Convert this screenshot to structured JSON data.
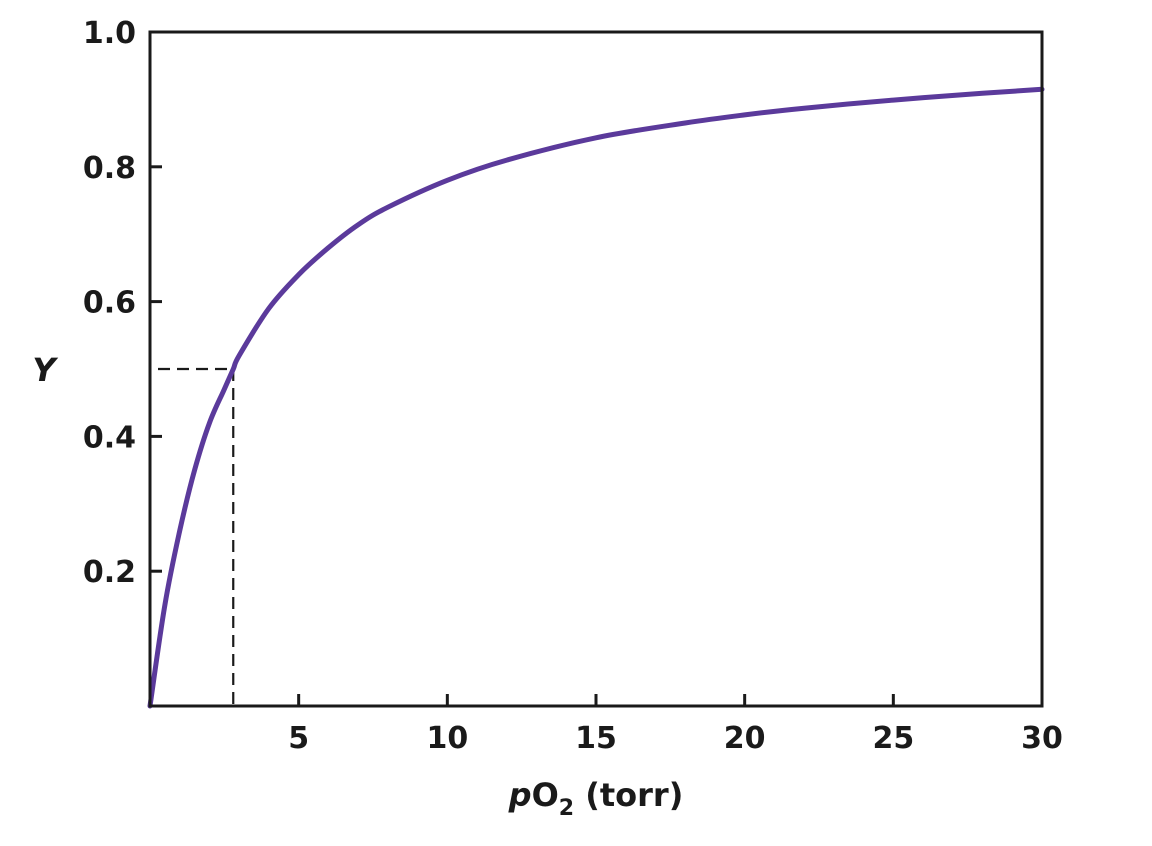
{
  "chart_data": {
    "type": "line",
    "title": "",
    "xlabel": {
      "italic_prefix": "p",
      "main": "O",
      "subscript": "2",
      "suffix": " (torr)"
    },
    "ylabel": "Y",
    "xlim": [
      0,
      30
    ],
    "ylim": [
      0,
      1.0
    ],
    "x_ticks": [
      5,
      10,
      15,
      20,
      25,
      30
    ],
    "x_tick_labels": [
      "5",
      "10",
      "15",
      "20",
      "25",
      "30"
    ],
    "y_ticks": [
      0.2,
      0.4,
      0.6,
      0.8,
      1.0
    ],
    "y_tick_labels": [
      "0.2",
      "0.4",
      "0.6",
      "0.8",
      "1.0"
    ],
    "grid": false,
    "series": [
      {
        "color": "#5b3a9b",
        "x": [
          0,
          0.5,
          1,
          1.5,
          2,
          2.5,
          2.8,
          3,
          4,
          5,
          6,
          7,
          8,
          10,
          12,
          15,
          18,
          20,
          22,
          25,
          28,
          30
        ],
        "y": [
          0,
          0.15,
          0.26,
          0.35,
          0.42,
          0.47,
          0.5,
          0.52,
          0.59,
          0.64,
          0.68,
          0.714,
          0.74,
          0.78,
          0.81,
          0.843,
          0.865,
          0.877,
          0.887,
          0.899,
          0.909,
          0.915
        ]
      }
    ],
    "annotations": [
      {
        "type": "dashed-guide",
        "x": 2.8,
        "y": 0.5,
        "color": "#1a1a1a"
      }
    ]
  }
}
